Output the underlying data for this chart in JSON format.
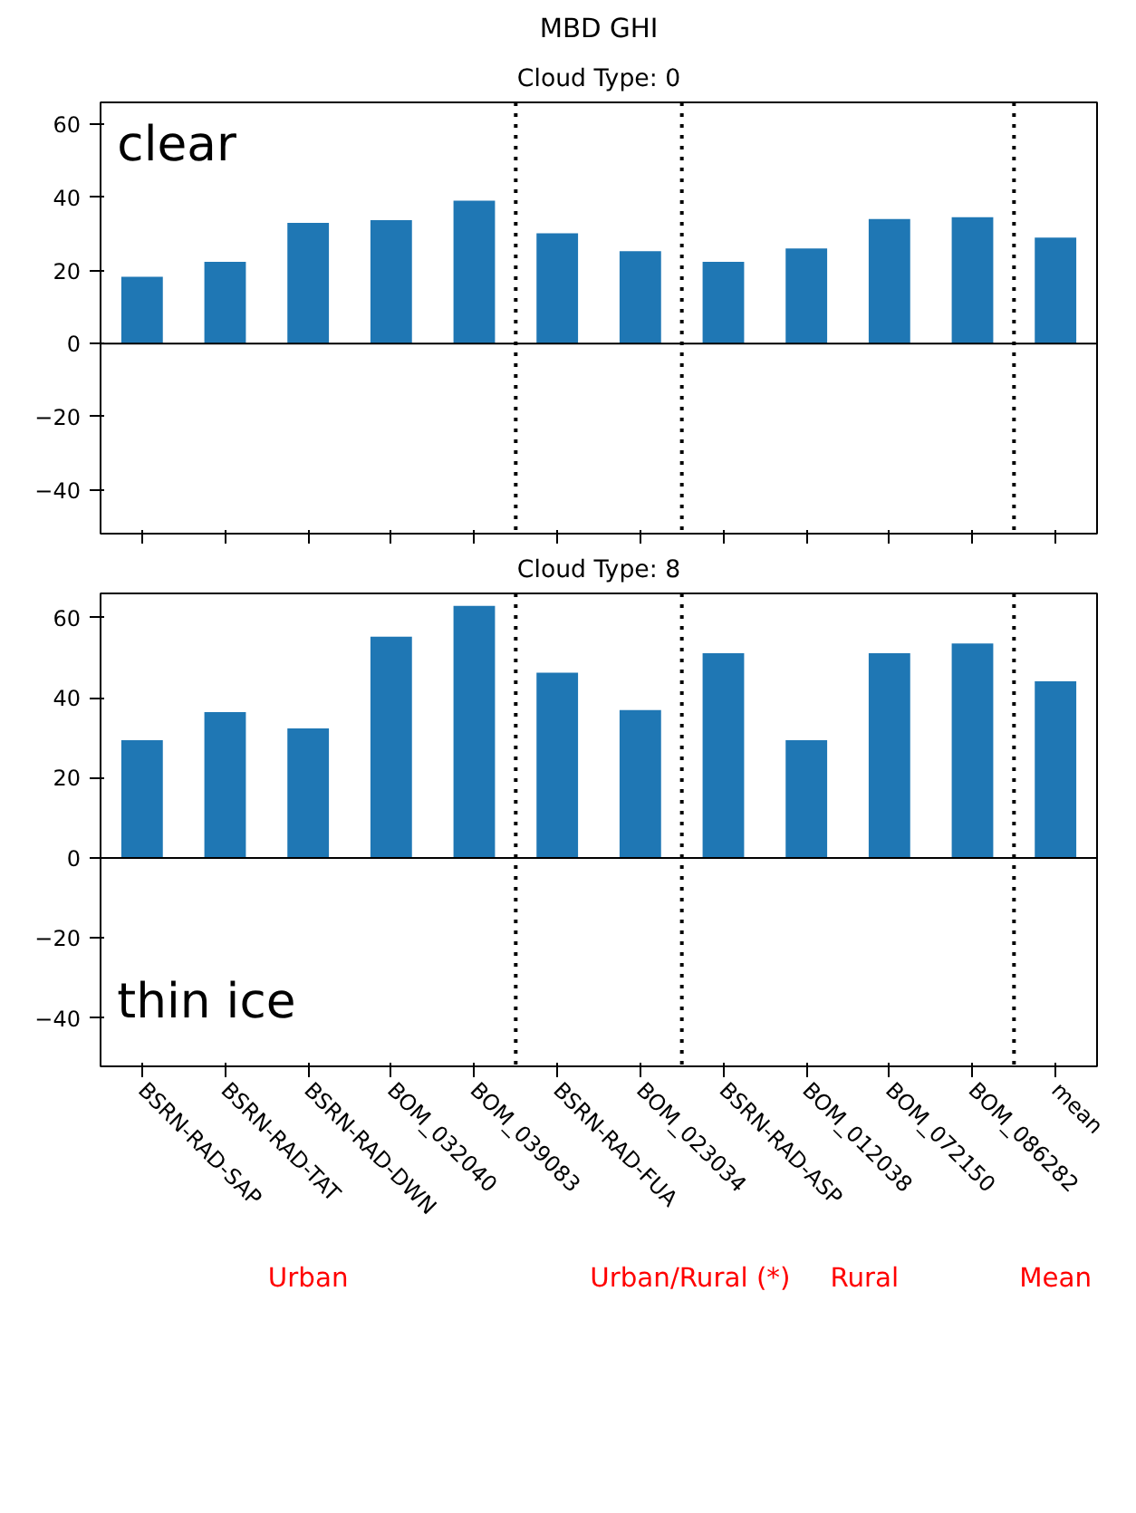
{
  "chart_data": [
    {
      "type": "bar",
      "title": "MBD GHI",
      "subtitle": "Cloud Type: 0",
      "annotations": [
        "clear"
      ],
      "categories": [
        null,
        null,
        null,
        null,
        null,
        null,
        null,
        null,
        null,
        null,
        null,
        null
      ],
      "values": [
        18.3,
        22.4,
        33.0,
        33.8,
        39.1,
        30.2,
        25.3,
        22.4,
        26.0,
        34.1,
        34.6,
        29.0
      ],
      "color": "#1f77b4",
      "ylim": [
        -52,
        66
      ],
      "yticks": [
        -40,
        -20,
        0,
        20,
        40,
        60
      ],
      "grid": false,
      "tick_labels": "y",
      "ref_lines": [
        {
          "axis": "y",
          "value": 0,
          "color": "#000000",
          "line_style": "solid"
        }
      ]
    },
    {
      "type": "bar",
      "subtitle": "Cloud Type: 8",
      "annotations": [
        "thin ice",
        "Urban",
        "Urban/Rural (*)",
        "Rural",
        "Mean"
      ],
      "categories": [
        "BSRN-RAD-SAP",
        "BSRN-RAD-TAT",
        "BSRN-RAD-DWN",
        "BOM_032040",
        "BOM_039083",
        "BSRN-RAD-FUA",
        "BOM_023034",
        "BSRN-RAD-ASP",
        "BOM_012038",
        "BOM_072150",
        "BOM_086282",
        "mean"
      ],
      "values": [
        29.4,
        36.4,
        32.3,
        55.2,
        62.9,
        46.2,
        36.9,
        51.1,
        29.4,
        51.1,
        53.5,
        44.1
      ],
      "color": "#1f77b4",
      "ylim": [
        -52,
        66
      ],
      "yticks": [
        -40,
        -20,
        0,
        20,
        40,
        60
      ],
      "grid": false,
      "ref_lines": [
        {
          "axis": "y",
          "value": 0,
          "color": "#000000",
          "line_style": "solid"
        }
      ]
    }
  ]
}
